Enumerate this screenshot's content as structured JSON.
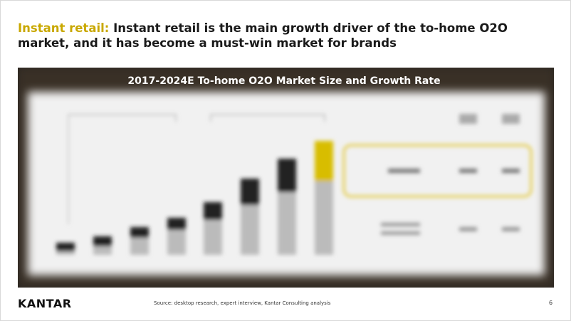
{
  "header": {
    "highlight": "Instant retail:",
    "title": "Instant retail is the main growth driver of the to-home O2O market, and it has become a must-win market for brands"
  },
  "figure": {
    "title": "2017-2024E To-home O2O Market Size and Growth Rate"
  },
  "footer": {
    "logo": "KANTAR",
    "source": "Source: desktop research, expert interview, Kantar Consulting analysis",
    "page": "6"
  }
}
